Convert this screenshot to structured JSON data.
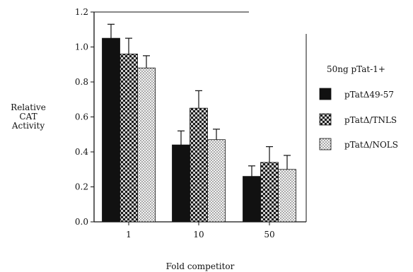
{
  "chart_data": {
    "type": "bar",
    "xlabel": "Fold competitor",
    "ylabel": [
      "Relative",
      "CAT",
      "Activity"
    ],
    "categories": [
      "1",
      "10",
      "50"
    ],
    "ylim": [
      0,
      1.2
    ],
    "yticks": [
      "0.0",
      "0.2",
      "0.4",
      "0.6",
      "0.8",
      "1.0",
      "1.2"
    ],
    "legend_title": "50ng pTat-1+",
    "legend_position": "right",
    "series": [
      {
        "name": "pTatΔ49-57",
        "pattern": "solid",
        "values": [
          1.05,
          0.44,
          0.26
        ],
        "errors": [
          0.08,
          0.08,
          0.06
        ]
      },
      {
        "name": "pTatΔ/TNLS",
        "pattern": "checker",
        "values": [
          0.96,
          0.65,
          0.34
        ],
        "errors": [
          0.09,
          0.1,
          0.09
        ]
      },
      {
        "name": "pTatΔ/NOLS",
        "pattern": "dots",
        "values": [
          0.88,
          0.47,
          0.3
        ],
        "errors": [
          0.07,
          0.06,
          0.08
        ]
      }
    ]
  }
}
